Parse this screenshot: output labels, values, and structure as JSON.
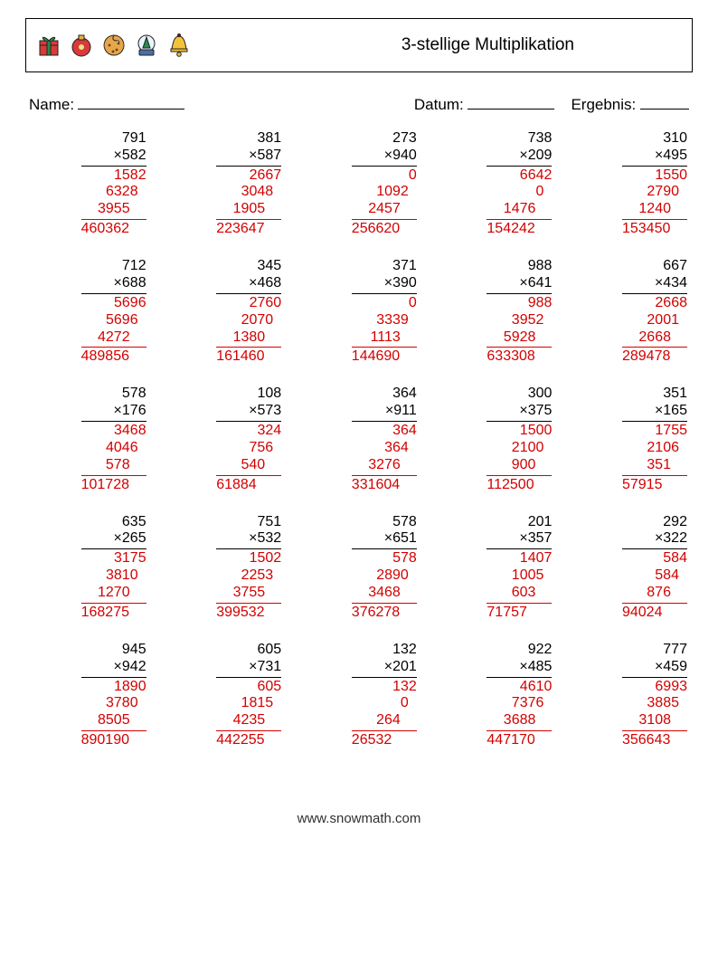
{
  "header": {
    "title": "3-stellige Multiplikation",
    "icon_colors": {
      "gift_body": "#d93a3a",
      "gift_ribbon": "#2a8a4a",
      "ornament": "#d93a3a",
      "ornament_cap": "#e6b23a",
      "cookie": "#e6a64a",
      "cookie_chip": "#6b3e1a",
      "globe_base": "#4a6fa5",
      "globe_tree": "#2a8a4a",
      "bell": "#f2c23a"
    }
  },
  "meta": {
    "name_label": "Name:",
    "datum_label": "Datum:",
    "ergebnis_label": "Ergebnis:",
    "name_blank_width": 118,
    "datum_blank_width": 96,
    "ergebnis_blank_width": 54
  },
  "answer_color": "#d40000",
  "problems": [
    {
      "a": "791",
      "b": "582",
      "partials": [
        "1582",
        "6328",
        "3955"
      ],
      "ans": "460362"
    },
    {
      "a": "381",
      "b": "587",
      "partials": [
        "2667",
        "3048",
        "1905"
      ],
      "ans": "223647"
    },
    {
      "a": "273",
      "b": "940",
      "partials": [
        "0",
        "1092",
        "2457"
      ],
      "ans": "256620"
    },
    {
      "a": "738",
      "b": "209",
      "partials": [
        "6642",
        "0",
        "1476"
      ],
      "ans": "154242"
    },
    {
      "a": "310",
      "b": "495",
      "partials": [
        "1550",
        "2790",
        "1240"
      ],
      "ans": "153450"
    },
    {
      "a": "712",
      "b": "688",
      "partials": [
        "5696",
        "5696",
        "4272"
      ],
      "ans": "489856"
    },
    {
      "a": "345",
      "b": "468",
      "partials": [
        "2760",
        "2070",
        "1380"
      ],
      "ans": "161460"
    },
    {
      "a": "371",
      "b": "390",
      "partials": [
        "0",
        "3339",
        "1113"
      ],
      "ans": "144690"
    },
    {
      "a": "988",
      "b": "641",
      "partials": [
        "988",
        "3952",
        "5928"
      ],
      "ans": "633308"
    },
    {
      "a": "667",
      "b": "434",
      "partials": [
        "2668",
        "2001",
        "2668"
      ],
      "ans": "289478"
    },
    {
      "a": "578",
      "b": "176",
      "partials": [
        "3468",
        "4046",
        "578"
      ],
      "ans": "101728"
    },
    {
      "a": "108",
      "b": "573",
      "partials": [
        "324",
        "756",
        "540"
      ],
      "ans": "61884"
    },
    {
      "a": "364",
      "b": "911",
      "partials": [
        "364",
        "364",
        "3276"
      ],
      "ans": "331604"
    },
    {
      "a": "300",
      "b": "375",
      "partials": [
        "1500",
        "2100",
        "900"
      ],
      "ans": "112500"
    },
    {
      "a": "351",
      "b": "165",
      "partials": [
        "1755",
        "2106",
        "351"
      ],
      "ans": "57915"
    },
    {
      "a": "635",
      "b": "265",
      "partials": [
        "3175",
        "3810",
        "1270"
      ],
      "ans": "168275"
    },
    {
      "a": "751",
      "b": "532",
      "partials": [
        "1502",
        "2253",
        "3755"
      ],
      "ans": "399532"
    },
    {
      "a": "578",
      "b": "651",
      "partials": [
        "578",
        "2890",
        "3468"
      ],
      "ans": "376278"
    },
    {
      "a": "201",
      "b": "357",
      "partials": [
        "1407",
        "1005",
        "603"
      ],
      "ans": "71757"
    },
    {
      "a": "292",
      "b": "322",
      "partials": [
        "584",
        "584",
        "876"
      ],
      "ans": "94024"
    },
    {
      "a": "945",
      "b": "942",
      "partials": [
        "1890",
        "3780",
        "8505"
      ],
      "ans": "890190"
    },
    {
      "a": "605",
      "b": "731",
      "partials": [
        "605",
        "1815",
        "4235"
      ],
      "ans": "442255"
    },
    {
      "a": "132",
      "b": "201",
      "partials": [
        "132",
        "0",
        "264"
      ],
      "ans": "26532"
    },
    {
      "a": "922",
      "b": "485",
      "partials": [
        "4610",
        "7376",
        "3688"
      ],
      "ans": "447170"
    },
    {
      "a": "777",
      "b": "459",
      "partials": [
        "6993",
        "3885",
        "3108"
      ],
      "ans": "356643"
    }
  ],
  "footer": "www.snowmath.com"
}
